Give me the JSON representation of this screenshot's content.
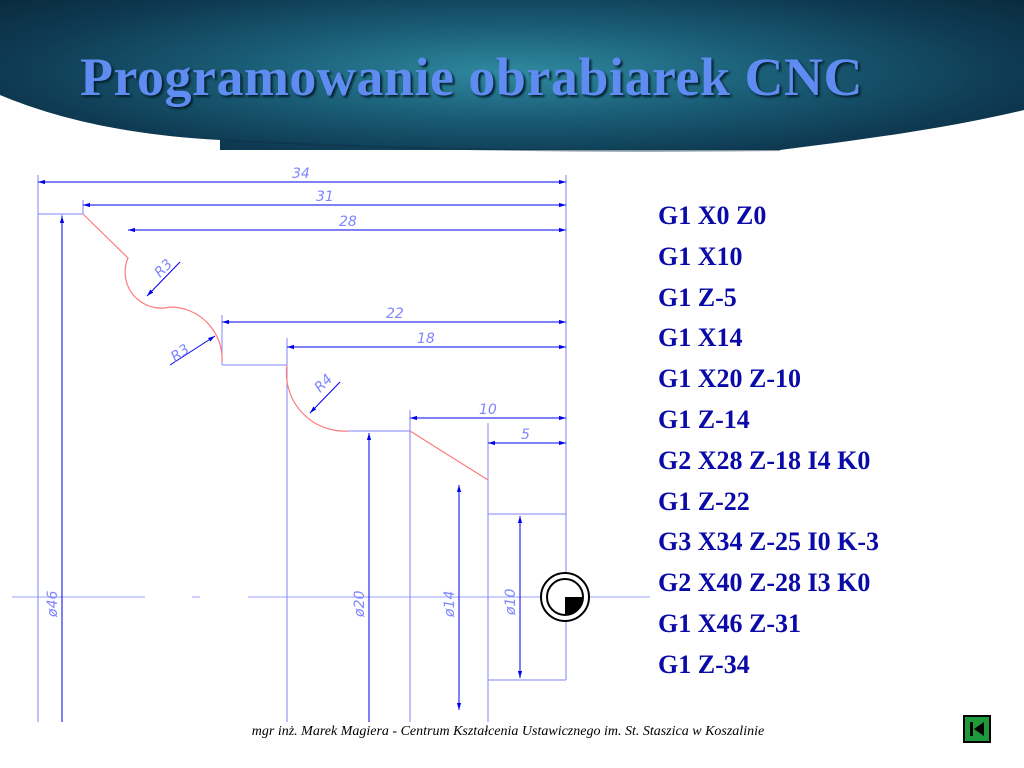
{
  "slide": {
    "title": "Programowanie obrabiarek CNC",
    "footer": "mgr inż. Marek Magiera - Centrum Kształcenia Ustawicznego im. St. Staszica w Koszalinie"
  },
  "drawing": {
    "dimensions_horizontal": [
      "34",
      "31",
      "28",
      "22",
      "18",
      "10",
      "5"
    ],
    "dimensions_diameter": [
      "ø46",
      "ø20",
      "ø14",
      "ø10"
    ],
    "radii": [
      "R3",
      "R3",
      "R4"
    ]
  },
  "program": [
    "G1 X0 Z0",
    "G1 X10",
    "G1 Z-5",
    "G1 X14",
    "G1 X20 Z-10",
    "G1 Z-14",
    "G2 X28 Z-18 I4 K0",
    "G1 Z-22",
    "G3 X34 Z-25 I0 K-3",
    "G2 X40 Z-28 I3 K0",
    "G1 X46 Z-31",
    "G1 Z-34"
  ],
  "colors": {
    "title": "#5f8cf0",
    "gcode": "#0a0aa8",
    "dimension_lines": "#7f86ff",
    "contour": "#ff7a7a",
    "nav_button": "#1e9a3c"
  },
  "icons": {
    "nav": "back-to-start-icon",
    "origin": "workpiece-zero-icon"
  }
}
